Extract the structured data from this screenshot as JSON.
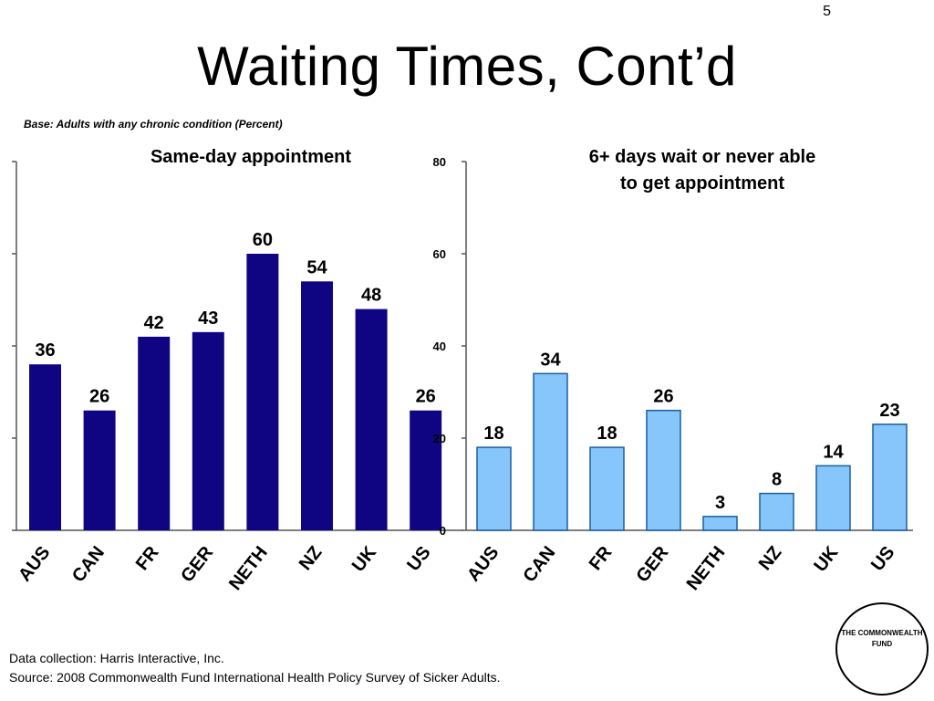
{
  "slide_number": "5",
  "title": "Waiting Times, Cont’d",
  "base_note": "Base: Adults with any chronic condition (Percent)",
  "footer": {
    "line1": "Data collection: Harris Interactive, Inc.",
    "line2": "Source: 2008 Commonwealth Fund International Health Policy Survey of Sicker Adults."
  },
  "logo": {
    "line1": "THE COMMONWEALTH",
    "line2": "FUND"
  },
  "chart_data": [
    {
      "type": "bar",
      "title": "Same-day appointment",
      "categories": [
        "AUS",
        "CAN",
        "FR",
        "GER",
        "NETH",
        "NZ",
        "UK",
        "US"
      ],
      "values": [
        36,
        26,
        42,
        43,
        60,
        54,
        48,
        26
      ],
      "ylim": [
        0,
        80
      ],
      "yticks": [
        0,
        20,
        40,
        60,
        80
      ],
      "show_tick_labels": false,
      "color": "#0f0582"
    },
    {
      "type": "bar",
      "title": "6+ days wait or never able to get appointment",
      "title_lines": [
        "6+ days wait or never able",
        "to get appointment"
      ],
      "categories": [
        "AUS",
        "CAN",
        "FR",
        "GER",
        "NETH",
        "NZ",
        "UK",
        "US"
      ],
      "values": [
        18,
        34,
        18,
        26,
        3,
        8,
        14,
        23
      ],
      "ylim": [
        0,
        80
      ],
      "yticks": [
        0,
        20,
        40,
        60,
        80
      ],
      "tick_labels": [
        "0",
        "20",
        "40",
        "60",
        "80"
      ],
      "show_tick_labels": true,
      "color": "#87c6fb"
    }
  ]
}
